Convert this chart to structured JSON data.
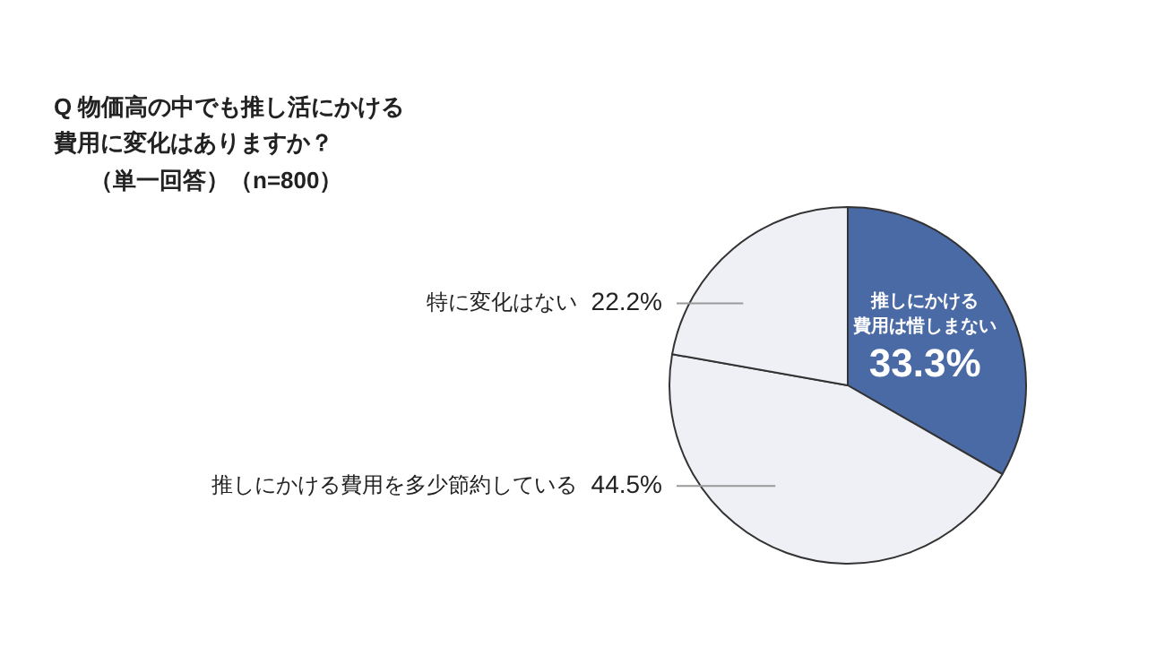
{
  "chart_data": {
    "type": "pie",
    "title": "Q 物価高の中でも推し活にかける費用に変化はありますか？",
    "subtitle": "（単一回答）（n=800）",
    "categories": [
      "推しにかける費用は惜しまない",
      "推しにかける費用を多少節約している",
      "特に変化はない"
    ],
    "values": [
      33.3,
      44.5,
      22.2
    ],
    "colors": [
      "#4a6aa5",
      "#eef0f6",
      "#eef0f6"
    ],
    "value_labels": [
      "33.3%",
      "44.5%",
      "22.2%"
    ],
    "legend": false
  }
}
